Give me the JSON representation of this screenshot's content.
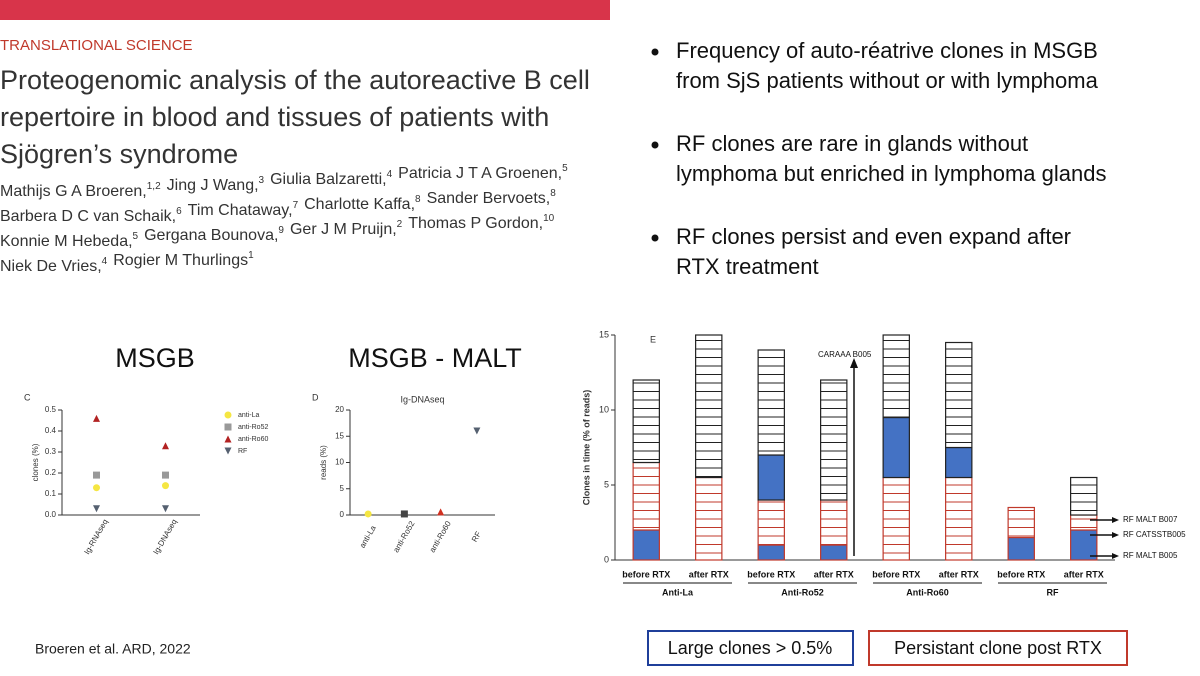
{
  "header": {
    "section": "TRANSLATIONAL SCIENCE",
    "title_lines": [
      "Proteogenomic analysis of the autoreactive B cell",
      "repertoire in blood and tissues of patients with",
      "Sjögren’s syndrome"
    ],
    "author_lines": [
      [
        {
          "name": "Mathijs G A Broeren,",
          "sup": "1,2"
        },
        {
          "name": "Jing J Wang,",
          "sup": "3"
        },
        {
          "name": "Giulia Balzaretti,",
          "sup": "4"
        },
        {
          "name": "Patricia J T A Groenen,",
          "sup": "5"
        }
      ],
      [
        {
          "name": "Barbera D C van Schaik,",
          "sup": "6"
        },
        {
          "name": "Tim Chataway,",
          "sup": "7"
        },
        {
          "name": "Charlotte Kaffa,",
          "sup": "8"
        },
        {
          "name": "Sander Bervoets,",
          "sup": "8"
        }
      ],
      [
        {
          "name": "Konnie M Hebeda,",
          "sup": "5"
        },
        {
          "name": "Gergana Bounova,",
          "sup": "9"
        },
        {
          "name": "Ger J M Pruijn,",
          "sup": "2"
        },
        {
          "name": "Thomas P Gordon,",
          "sup": "10"
        }
      ],
      [
        {
          "name": "Niek De Vries,",
          "sup": "4"
        },
        {
          "name": "Rogier M Thurlings",
          "sup": "1"
        }
      ]
    ]
  },
  "bullets": [
    [
      "Frequency of auto-réatrive clones in MSGB",
      "from SjS patients without or with lymphoma"
    ],
    [
      "RF clones are rare in glands without",
      "lymphoma but enriched in lymphoma glands"
    ],
    [
      "RF clones persist and even expand after",
      "RTX treatment"
    ]
  ],
  "headings": {
    "left": "MSGB",
    "middle": "MSGB - MALT",
    "panel_e": "E"
  },
  "citation": "Broeren et al. ARD, 2022",
  "legend_boxes": {
    "large": "Large clones > 0.5%",
    "persistent": "Persistant clone post RTX"
  },
  "chart_data": [
    {
      "type": "scatter",
      "panel": "C",
      "y_label": "clones (%)",
      "categories": [
        "Ig-RNAseq",
        "Ig-DNAseq"
      ],
      "ylim": [
        0,
        0.5
      ],
      "yticks": [
        {
          "value": 0,
          "label": "0.0"
        },
        0.1,
        0.2,
        0.3,
        0.4,
        0.5
      ],
      "series": [
        {
          "name": "anti-La",
          "color": "#f5e642",
          "marker": "circle",
          "values": [
            0.13,
            0.14
          ]
        },
        {
          "name": "anti-Ro52",
          "color": "#999999",
          "marker": "square",
          "values": [
            0.19,
            0.19
          ]
        },
        {
          "name": "anti-Ro60",
          "color": "#b22222",
          "marker": "triangle-up",
          "values": [
            0.46,
            0.33
          ]
        },
        {
          "name": "RF",
          "color": "#556070",
          "marker": "triangle-down",
          "values": [
            0.03,
            0.03
          ]
        }
      ]
    },
    {
      "type": "scatter",
      "panel": "D",
      "title": "Ig-DNAseq",
      "y_label": "reads (%)",
      "categories": [
        "anti-La",
        "anti-Ro52",
        "anti-Ro60",
        "RF"
      ],
      "ylim": [
        0,
        20
      ],
      "yticks": [
        0,
        5,
        10,
        15,
        20
      ],
      "series": [
        {
          "color": "#f5e642",
          "marker": "circle",
          "values": [
            0.2,
            null,
            null,
            null
          ]
        },
        {
          "color": "#444444",
          "marker": "square",
          "values": [
            null,
            0.2,
            null,
            null
          ]
        },
        {
          "color": "#d03020",
          "marker": "triangle-up",
          "values": [
            null,
            null,
            0.6,
            null
          ]
        },
        {
          "color": "#556070",
          "marker": "triangle-down",
          "values": [
            null,
            null,
            null,
            16
          ]
        }
      ]
    },
    {
      "type": "bar",
      "stacked": true,
      "y_label": "Clones in time (% of reads)",
      "categories": [
        "before RTX",
        "after RTX",
        "before RTX",
        "after RTX",
        "before RTX",
        "after RTX",
        "before RTX",
        "after RTX"
      ],
      "groups": [
        "Anti-La",
        "Anti-Ro52",
        "Anti-Ro60",
        "RF"
      ],
      "ylim": [
        0,
        15
      ],
      "yticks": [
        0,
        5,
        10,
        15
      ],
      "series": [
        {
          "color": "#4472c4",
          "outline": "#c0392b",
          "hatch": false,
          "values": [
            2,
            0,
            1,
            1,
            0,
            0,
            1.5,
            2
          ]
        },
        {
          "color": "#c0392b",
          "outline": "#c0392b",
          "hatch": true,
          "values": [
            4.5,
            5.5,
            3,
            3,
            5.5,
            5.5,
            2,
            1
          ]
        },
        {
          "color": "#4472c4",
          "outline": "#222222",
          "hatch": false,
          "values": [
            0,
            0,
            3,
            0,
            4,
            2,
            0,
            0
          ]
        },
        {
          "color": "#222222",
          "outline": "#222222",
          "hatch": true,
          "values": [
            5.5,
            9.5,
            7,
            8,
            5.5,
            7,
            0,
            2.5
          ]
        }
      ],
      "annotations": [
        "CARAAA B005",
        "RF MALT B007",
        "RF CATSSTB005",
        "RF MALT B005"
      ]
    }
  ]
}
